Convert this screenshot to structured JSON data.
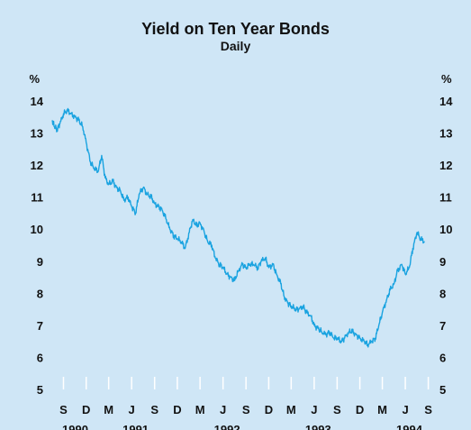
{
  "chart_data": {
    "type": "line",
    "title": "Yield on Ten Year Bonds",
    "subtitle": "Daily",
    "yunit_left": "%",
    "yunit_right": "%",
    "ylim": [
      5,
      14
    ],
    "yticks": [
      5,
      6,
      7,
      8,
      9,
      10,
      11,
      12,
      13,
      14
    ],
    "xlim": [
      "1990-08-01",
      "1994-10-01"
    ],
    "month_ticks": [
      "S",
      "D",
      "M",
      "J",
      "S",
      "D",
      "M",
      "J",
      "S",
      "D",
      "M",
      "J",
      "S",
      "D",
      "M",
      "J",
      "S"
    ],
    "month_tick_dates": [
      "1990-09-15",
      "1990-12-15",
      "1991-03-15",
      "1991-06-15",
      "1991-09-15",
      "1991-12-15",
      "1992-03-15",
      "1992-06-15",
      "1992-09-15",
      "1992-12-15",
      "1993-03-15",
      "1993-06-15",
      "1993-09-15",
      "1993-12-15",
      "1994-03-15",
      "1994-06-15",
      "1994-09-15"
    ],
    "years": [
      "1990",
      "1991",
      "1992",
      "1993",
      "1994"
    ],
    "grid": false,
    "line_color": "#1aa3e0",
    "series": [
      {
        "x": [
          "1990-08-01",
          "1990-08-10",
          "1990-08-20",
          "1990-09-01",
          "1990-09-15",
          "1990-10-01",
          "1990-10-15",
          "1990-11-01",
          "1990-11-15",
          "1990-12-01",
          "1990-12-15",
          "1991-01-01",
          "1991-01-15",
          "1991-02-01",
          "1991-02-15",
          "1991-03-01",
          "1991-03-15",
          "1991-04-01",
          "1991-04-15",
          "1991-05-01",
          "1991-05-15",
          "1991-06-01",
          "1991-06-15",
          "1991-07-01",
          "1991-07-15",
          "1991-08-01",
          "1991-08-15",
          "1991-09-01",
          "1991-09-15",
          "1991-10-01",
          "1991-10-15",
          "1991-11-01",
          "1991-11-15",
          "1991-12-01",
          "1991-12-15",
          "1992-01-01",
          "1992-01-15",
          "1992-02-01",
          "1992-02-15",
          "1992-03-01",
          "1992-03-15",
          "1992-04-01",
          "1992-04-15",
          "1992-05-01",
          "1992-05-15",
          "1992-06-01",
          "1992-06-15",
          "1992-07-01",
          "1992-07-15",
          "1992-08-01",
          "1992-08-15",
          "1992-09-01",
          "1992-09-15",
          "1992-10-01",
          "1992-10-15",
          "1992-11-01",
          "1992-11-15",
          "1992-12-01",
          "1992-12-15",
          "1993-01-01",
          "1993-01-15",
          "1993-02-01",
          "1993-02-15",
          "1993-03-01",
          "1993-03-15",
          "1993-04-01",
          "1993-04-15",
          "1993-05-01",
          "1993-05-15",
          "1993-06-01",
          "1993-06-15",
          "1993-07-01",
          "1993-07-15",
          "1993-08-01",
          "1993-08-15",
          "1993-09-01",
          "1993-09-15",
          "1993-10-01",
          "1993-10-15",
          "1993-11-01",
          "1993-11-15",
          "1993-12-01",
          "1993-12-15",
          "1994-01-01",
          "1994-01-15",
          "1994-02-01",
          "1994-02-15",
          "1994-03-01",
          "1994-03-15",
          "1994-04-01",
          "1994-04-15",
          "1994-05-01",
          "1994-05-15",
          "1994-06-01",
          "1994-06-15",
          "1994-07-01",
          "1994-07-15",
          "1994-08-01",
          "1994-08-15",
          "1994-09-01"
        ],
        "y": [
          13.4,
          13.2,
          13.1,
          13.3,
          13.6,
          13.7,
          13.6,
          13.5,
          13.4,
          13.2,
          12.7,
          12.1,
          11.9,
          11.8,
          12.3,
          11.6,
          11.4,
          11.5,
          11.3,
          11.2,
          10.9,
          11.0,
          10.7,
          10.5,
          11.1,
          11.3,
          11.1,
          11.0,
          10.8,
          10.7,
          10.6,
          10.3,
          10.0,
          9.8,
          9.7,
          9.6,
          9.4,
          9.9,
          10.3,
          10.1,
          10.2,
          9.9,
          9.6,
          9.5,
          9.1,
          8.9,
          8.8,
          8.6,
          8.5,
          8.4,
          8.7,
          8.9,
          8.8,
          8.9,
          8.9,
          8.8,
          9.0,
          9.1,
          8.8,
          8.9,
          8.6,
          8.3,
          7.9,
          7.7,
          7.6,
          7.5,
          7.5,
          7.6,
          7.4,
          7.3,
          7.0,
          6.9,
          6.8,
          6.7,
          6.8,
          6.6,
          6.6,
          6.5,
          6.6,
          6.8,
          6.8,
          6.7,
          6.6,
          6.5,
          6.4,
          6.5,
          6.6,
          7.0,
          7.4,
          7.8,
          8.1,
          8.3,
          8.7,
          8.9,
          8.6,
          8.8,
          9.4,
          9.9,
          9.7,
          9.6
        ]
      }
    ]
  }
}
